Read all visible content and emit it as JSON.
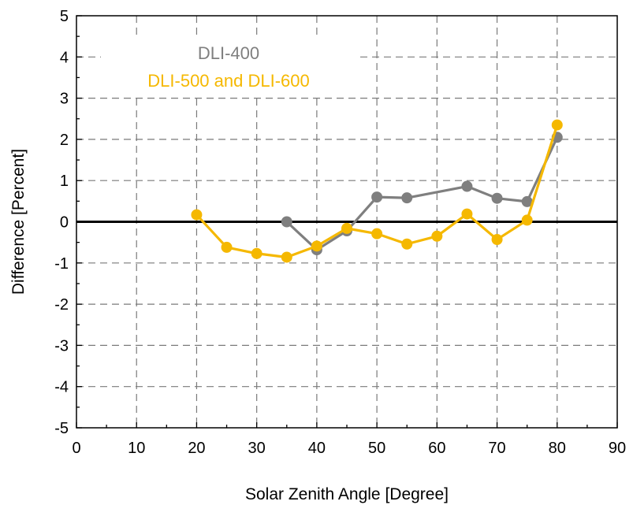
{
  "chart_data": {
    "type": "line",
    "title": "",
    "xlabel": "Solar Zenith Angle [Degree]",
    "ylabel": "Difference [Percent]",
    "xlim": [
      0,
      90
    ],
    "ylim": [
      -5,
      5
    ],
    "xticks": [
      0,
      10,
      20,
      30,
      40,
      50,
      60,
      70,
      80,
      90
    ],
    "yticks": [
      -5,
      -4,
      -3,
      -2,
      -1,
      0,
      1,
      2,
      3,
      4,
      5
    ],
    "xtick_labels": [
      "0",
      "10",
      "20",
      "30",
      "40",
      "50",
      "60",
      "70",
      "80",
      "90"
    ],
    "ytick_labels": [
      "-5",
      "-4",
      "-3",
      "-2",
      "-1",
      "0",
      "1",
      "2",
      "3",
      "4",
      "5"
    ],
    "grid": true,
    "grid_style": "dashed",
    "zero_line": true,
    "legend_placement": "upper-left-inside",
    "series": [
      {
        "name": "DLI-400",
        "color": "#7f7f7f",
        "x": [
          35,
          40,
          45,
          50,
          55,
          65,
          70,
          75,
          80
        ],
        "y": [
          0.0,
          -0.68,
          -0.22,
          0.6,
          0.58,
          0.86,
          0.57,
          0.49,
          2.05
        ]
      },
      {
        "name": "DLI-500 and DLI-600",
        "color": "#f5b800",
        "x": [
          20,
          25,
          30,
          35,
          40,
          45,
          50,
          55,
          60,
          65,
          70,
          75,
          80
        ],
        "y": [
          0.17,
          -0.62,
          -0.77,
          -0.86,
          -0.59,
          -0.16,
          -0.29,
          -0.54,
          -0.35,
          0.19,
          -0.43,
          0.04,
          2.35
        ]
      }
    ]
  }
}
